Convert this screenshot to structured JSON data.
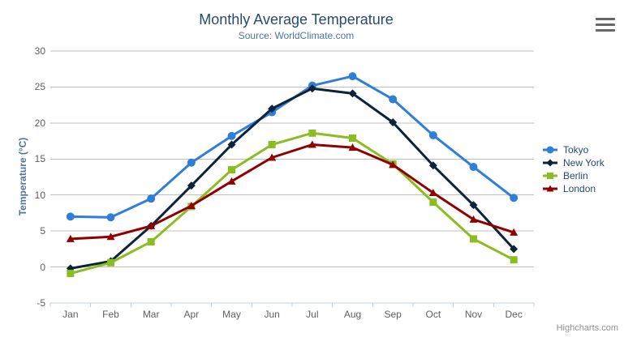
{
  "credits": "Highcharts.com",
  "export_menu": {
    "icon": "hamburger-icon"
  },
  "chart_data": {
    "type": "line",
    "title": "Monthly Average Temperature",
    "subtitle": "Source: WorldClimate.com",
    "categories": [
      "Jan",
      "Feb",
      "Mar",
      "Apr",
      "May",
      "Jun",
      "Jul",
      "Aug",
      "Sep",
      "Oct",
      "Nov",
      "Dec"
    ],
    "series": [
      {
        "name": "Tokyo",
        "color": "#2f7ed8",
        "marker": "circle",
        "values": [
          7.0,
          6.9,
          9.5,
          14.5,
          18.2,
          21.5,
          25.2,
          26.5,
          23.3,
          18.3,
          13.9,
          9.6
        ]
      },
      {
        "name": "New York",
        "color": "#0d233a",
        "marker": "diamond",
        "values": [
          -0.2,
          0.8,
          5.7,
          11.3,
          17.0,
          22.0,
          24.8,
          24.1,
          20.1,
          14.1,
          8.6,
          2.5
        ]
      },
      {
        "name": "Berlin",
        "color": "#8bbc21",
        "marker": "square",
        "values": [
          -0.9,
          0.6,
          3.5,
          8.4,
          13.5,
          17.0,
          18.6,
          17.9,
          14.3,
          9.0,
          3.9,
          1.0
        ]
      },
      {
        "name": "London",
        "color": "#910000",
        "marker": "triangle",
        "values": [
          3.9,
          4.2,
          5.7,
          8.5,
          11.9,
          15.2,
          17.0,
          16.6,
          14.2,
          10.3,
          6.6,
          4.8
        ]
      }
    ],
    "xlabel": "",
    "ylabel": "Temperature (°C)",
    "ylim": [
      -5,
      30
    ],
    "y_ticks": [
      30,
      25,
      20,
      15,
      10,
      5,
      0,
      -5
    ],
    "grid": true,
    "legend_position": "right"
  },
  "colors": {
    "title": "#274b6d",
    "subtitle": "#4d759e",
    "axis_labels": "#606060",
    "gridline": "#C0C0C0",
    "axis_line": "#C0D0E0",
    "legend_text": "#274b6d",
    "credits": "#909090"
  }
}
